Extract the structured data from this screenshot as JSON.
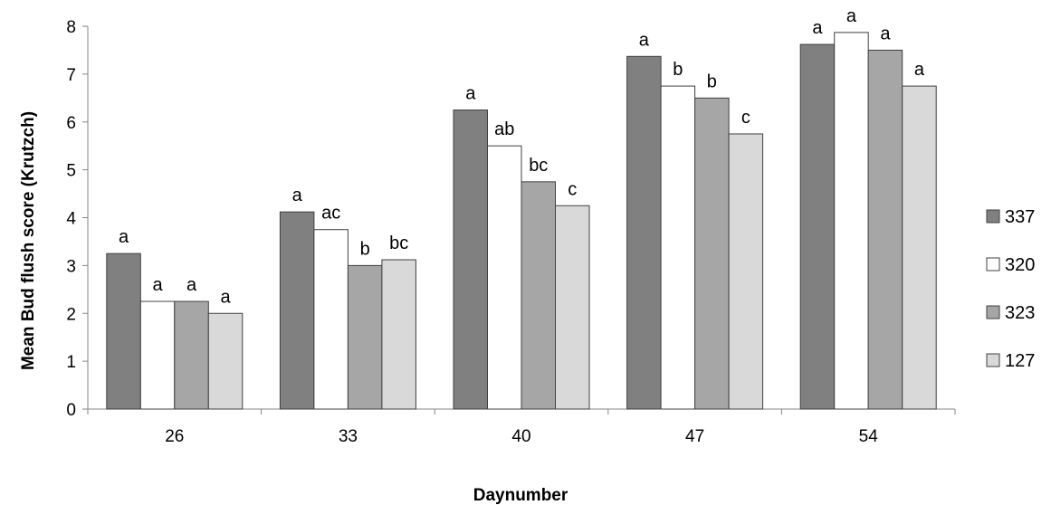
{
  "chart_data": {
    "type": "bar",
    "title": "",
    "xlabel": "Daynumber",
    "ylabel": "Mean Bud flush score (Krutzch)",
    "ylim": [
      0,
      8
    ],
    "yticks": [
      "0",
      "1",
      "2",
      "3",
      "4",
      "5",
      "6",
      "7",
      "8"
    ],
    "grid": false,
    "legend": "right",
    "categories": [
      "26",
      "33",
      "40",
      "47",
      "54"
    ],
    "series": [
      {
        "name": "337",
        "color": "#808080",
        "values": [
          3.25,
          4.12,
          6.25,
          7.37,
          7.62
        ],
        "labels": [
          "a",
          "a",
          "a",
          "a",
          "a"
        ]
      },
      {
        "name": "320",
        "color": "#ffffff",
        "values": [
          2.25,
          3.75,
          5.5,
          6.75,
          7.87
        ],
        "labels": [
          "a",
          "ac",
          "ab",
          "b",
          "a"
        ]
      },
      {
        "name": "323",
        "color": "#a6a6a6",
        "values": [
          2.25,
          3.0,
          4.75,
          6.5,
          7.5
        ],
        "labels": [
          "a",
          "b",
          "bc",
          "b",
          "a"
        ]
      },
      {
        "name": "127",
        "color": "#d9d9d9",
        "values": [
          2.0,
          3.12,
          4.25,
          5.75,
          6.75
        ],
        "labels": [
          "a",
          "bc",
          "c",
          "c",
          "a"
        ]
      }
    ]
  }
}
